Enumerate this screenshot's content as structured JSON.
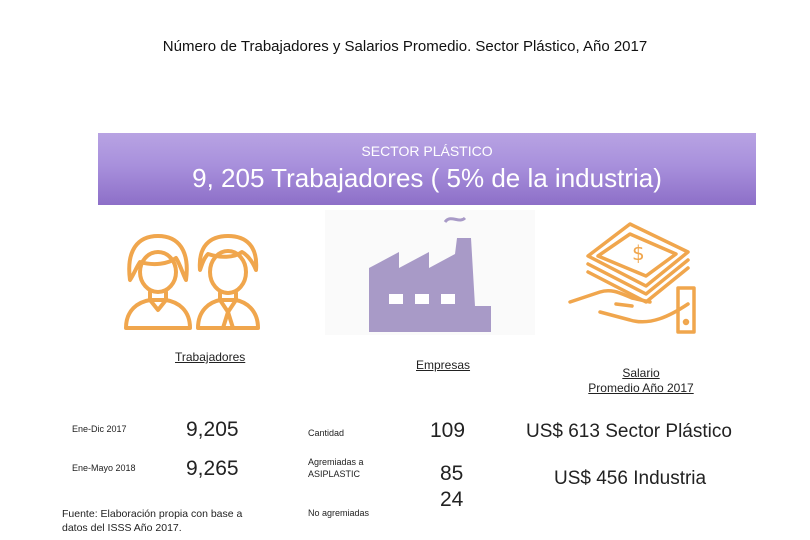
{
  "title": "Número de Trabajadores y Salarios Promedio. Sector Plástico, Año 2017",
  "banner": {
    "subtitle": "SECTOR PLÁSTICO",
    "headline": "9, 205 Trabajadores ( 5% de la industria)"
  },
  "colors": {
    "banner": "#a890dc",
    "icon_orange": "#f0a64d",
    "icon_purple": "#a89ac7"
  },
  "icons": [
    "workers-icon",
    "factory-icon",
    "salary-hand-icon"
  ],
  "trabajadores": {
    "header": "Trabajadores",
    "rows": [
      {
        "label": "Ene-Dic 2017",
        "value": "9,205"
      },
      {
        "label": "Ene-Mayo 2018",
        "value": "9,265"
      }
    ]
  },
  "empresas": {
    "header": "Empresas",
    "rows": [
      {
        "label": "Cantidad",
        "value": "109"
      },
      {
        "label": "Agremiadas a ASIPLASTIC",
        "value": "85"
      },
      {
        "label": "No agremiadas",
        "value": "24"
      }
    ]
  },
  "salario": {
    "header_line1": "Salario",
    "header_line2": "Promedio Año 2017",
    "sector": "US$ 613 Sector Plástico",
    "industria": "US$ 456 Industria"
  },
  "fuente": "Fuente: Elaboración propia con base a datos del ISSS Año 2017."
}
